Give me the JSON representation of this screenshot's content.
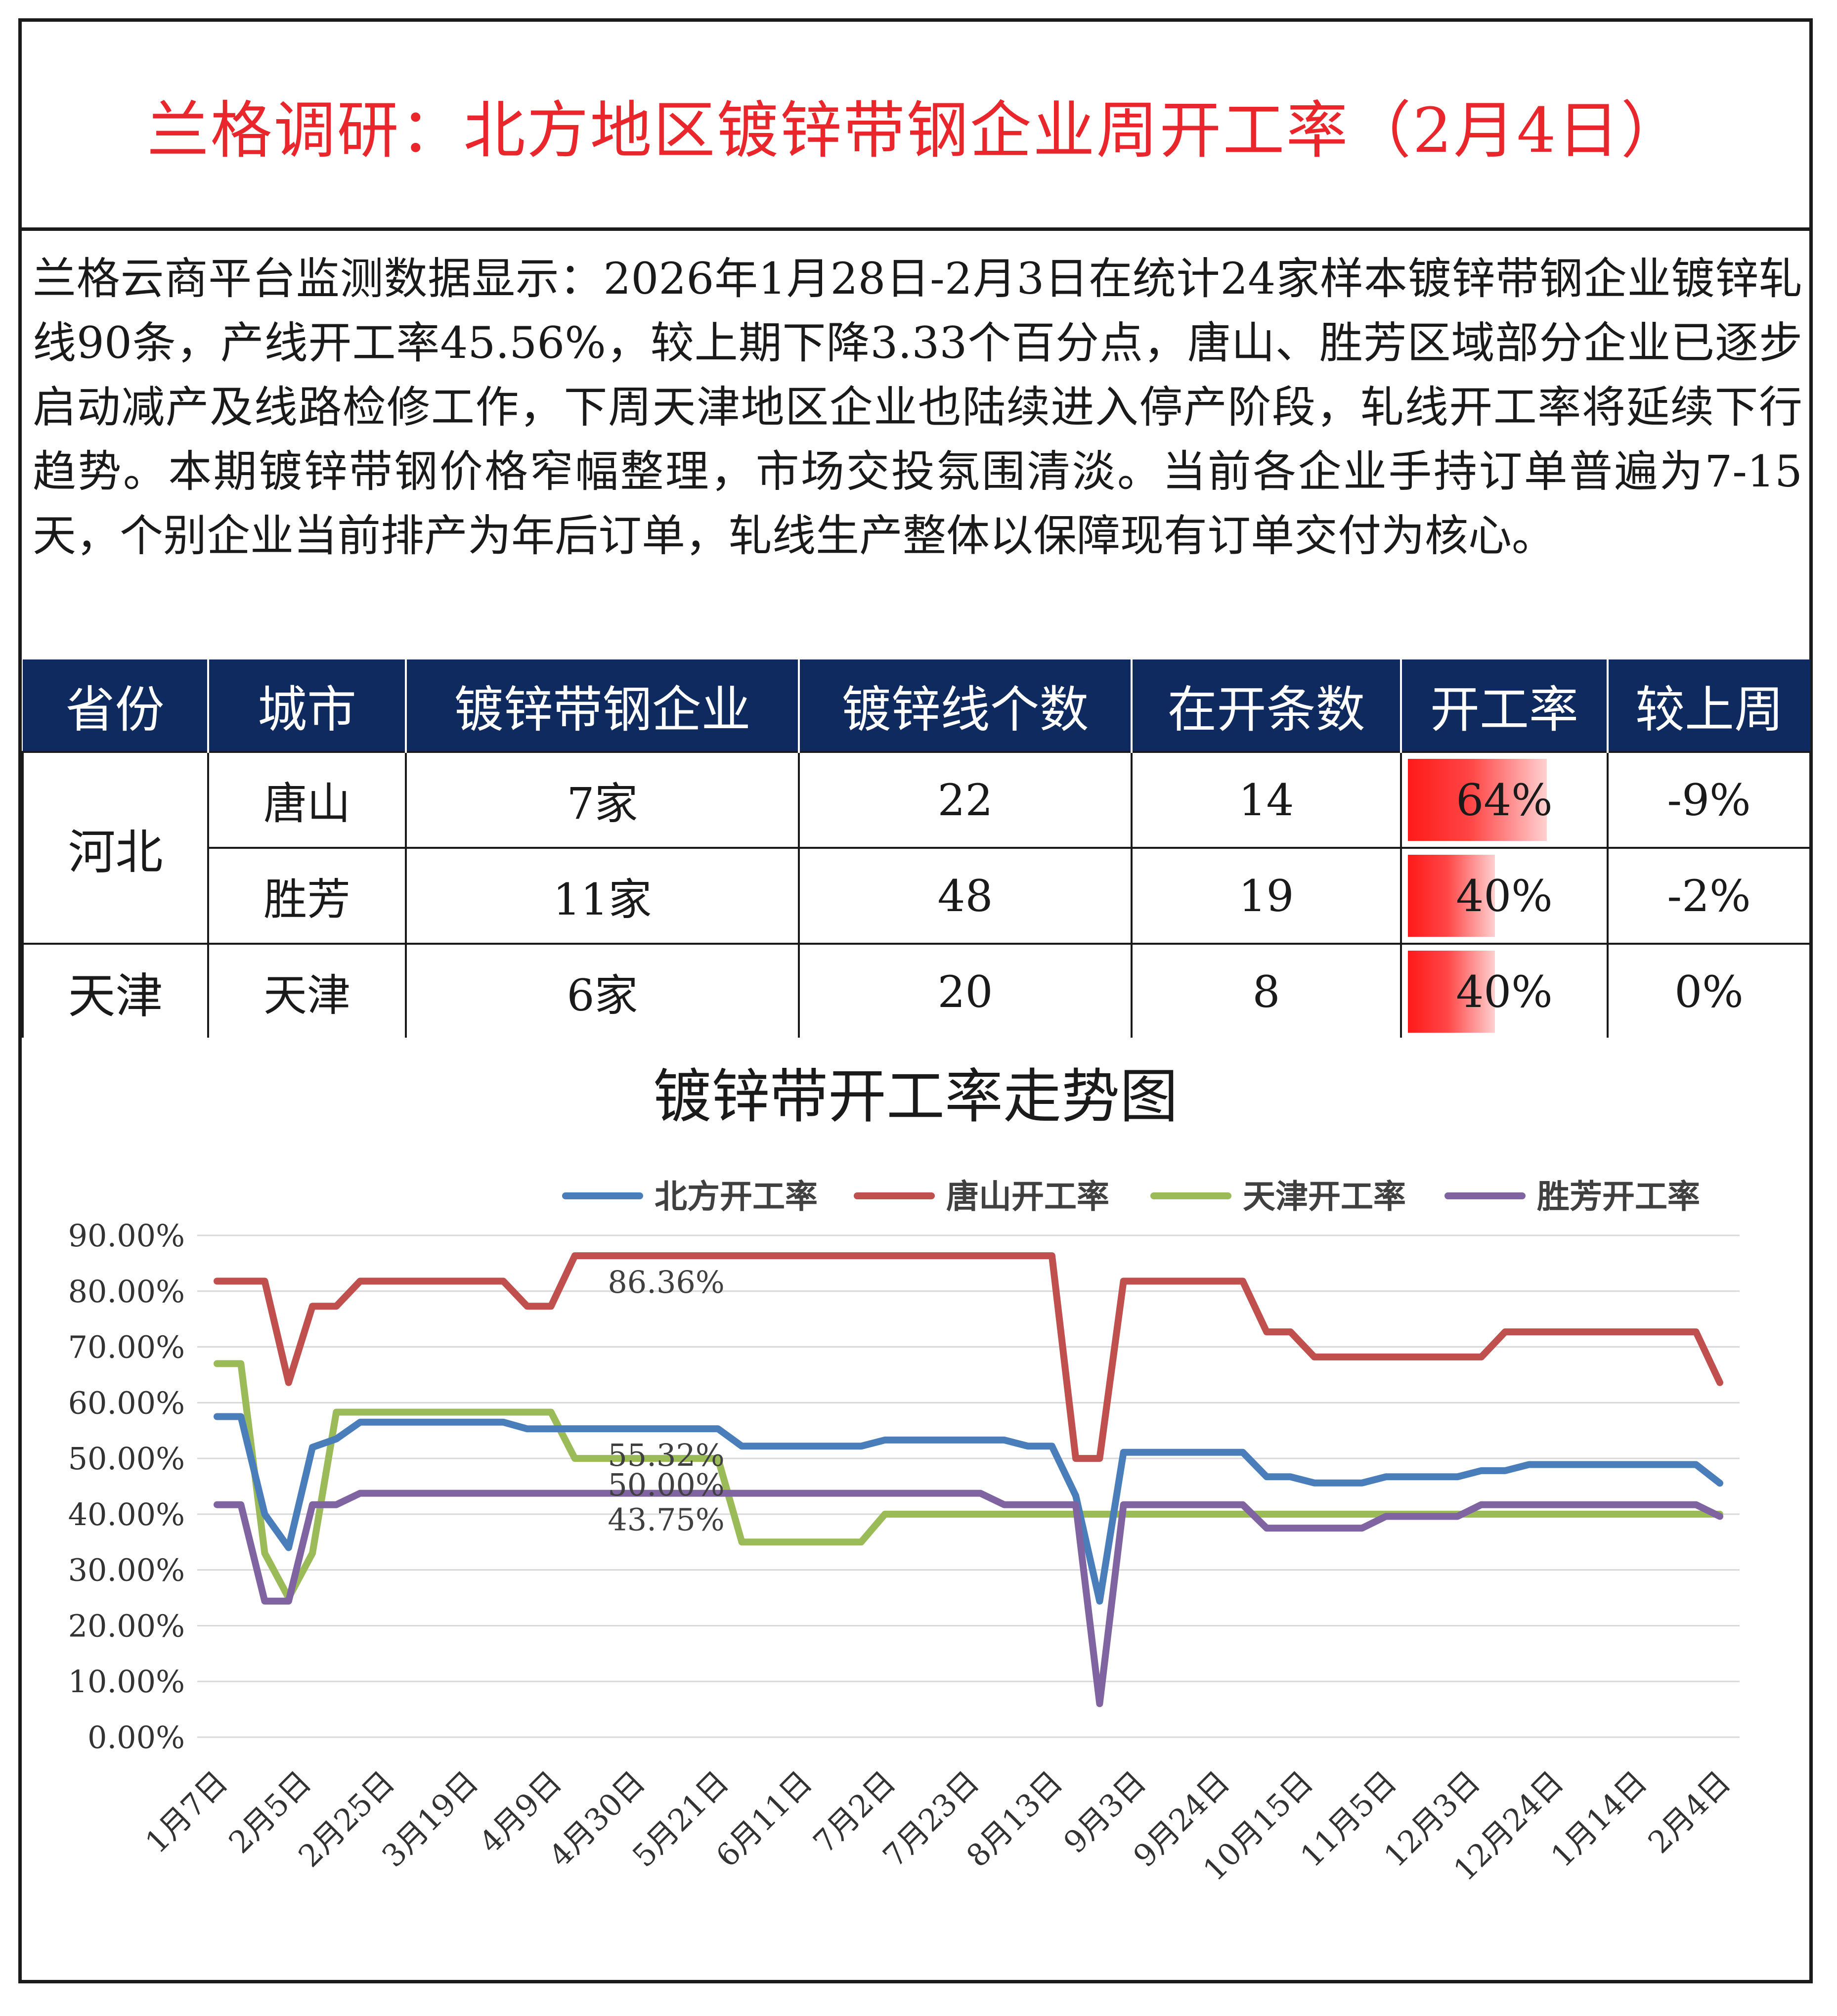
{
  "header": {
    "title": "兰格调研：北方地区镀锌带钢企业周开工率（2月4日）"
  },
  "description": "兰格云商平台监测数据显示：2026年1月28日-2月3日在统计24家样本镀锌带钢企业镀锌轧线90条，产线开工率45.56%，较上期下降3.33个百分点，唐山、胜芳区域部分企业已逐步启动减产及线路检修工作，下周天津地区企业也陆续进入停产阶段，轧线开工率将延续下行趋势。本期镀锌带钢价格窄幅整理，市场交投氛围清淡。当前各企业手持订单普遍为7-15天，个别企业当前排产为年后订单，轧线生产整体以保障现有订单交付为核心。",
  "table": {
    "headers": [
      "省份",
      "城市",
      "镀锌带钢企业",
      "镀锌线个数",
      "在开条数",
      "开工率",
      "较上周"
    ],
    "rows": [
      {
        "province": "河北",
        "city": "唐山",
        "enterprises": "7家",
        "lines": "22",
        "running": "14",
        "rate": "64%",
        "rate_value": 0.64,
        "change": "-9%"
      },
      {
        "province": "",
        "city": "胜芳",
        "enterprises": "11家",
        "lines": "48",
        "running": "19",
        "rate": "40%",
        "rate_value": 0.4,
        "change": "-2%"
      },
      {
        "province": "天津",
        "city": "天津",
        "enterprises": "6家",
        "lines": "20",
        "running": "8",
        "rate": "40%",
        "rate_value": 0.4,
        "change": "0%"
      }
    ],
    "header_bg": "#0f2a5e",
    "rate_bar_color": "#ff1a1a"
  },
  "chart_data": {
    "type": "line",
    "title": "镀锌带开工率走势图",
    "xlabel": "",
    "ylabel": "",
    "ylim": [
      0,
      90
    ],
    "y_ticks": [
      "90.00%",
      "80.00%",
      "70.00%",
      "60.00%",
      "50.00%",
      "40.00%",
      "30.00%",
      "20.00%",
      "10.00%",
      "0.00%"
    ],
    "x_tick_labels": [
      "1月7日",
      "2月5日",
      "2月25日",
      "3月19日",
      "4月9日",
      "4月30日",
      "5月21日",
      "6月11日",
      "7月2日",
      "7月23日",
      "8月13日",
      "9月3日",
      "9月24日",
      "10月15日",
      "11月5日",
      "12月3日",
      "12月24日",
      "1月14日",
      "2月4日"
    ],
    "legend_position": "top",
    "grid": true,
    "series": [
      {
        "name": "北方开工率",
        "color": "#4a7ebb",
        "values": [
          57.5,
          57.5,
          40,
          34,
          52,
          53.5,
          56.5,
          56.5,
          56.5,
          56.5,
          56.5,
          56.5,
          56.5,
          55.3,
          55.3,
          55.32,
          55.32,
          55.32,
          55.32,
          55.32,
          55.32,
          55.32,
          52.2,
          52.2,
          52.2,
          52.2,
          52.2,
          52.2,
          53.3,
          53.3,
          53.3,
          53.3,
          53.3,
          53.3,
          52.2,
          52.2,
          43.3,
          24.4,
          51.1,
          51.1,
          51.1,
          51.1,
          51.1,
          51.1,
          46.7,
          46.7,
          45.6,
          45.6,
          45.6,
          46.7,
          46.7,
          46.7,
          46.7,
          47.8,
          47.8,
          48.9,
          48.9,
          48.9,
          48.9,
          48.9,
          48.9,
          48.9,
          48.9,
          45.56
        ]
      },
      {
        "name": "唐山开工率",
        "color": "#c0504d",
        "values": [
          81.8,
          81.8,
          81.8,
          63.6,
          77.3,
          77.3,
          81.8,
          81.8,
          81.8,
          81.8,
          81.8,
          81.8,
          81.8,
          77.3,
          77.3,
          86.36,
          86.36,
          86.36,
          86.36,
          86.36,
          86.36,
          86.36,
          86.36,
          86.36,
          86.36,
          86.36,
          86.36,
          86.36,
          86.36,
          86.36,
          86.36,
          86.36,
          86.36,
          86.36,
          86.36,
          86.36,
          50,
          50,
          81.8,
          81.8,
          81.8,
          81.8,
          81.8,
          81.8,
          72.7,
          72.7,
          68.2,
          68.2,
          68.2,
          68.2,
          68.2,
          68.2,
          68.2,
          68.2,
          72.7,
          72.7,
          72.7,
          72.7,
          72.7,
          72.7,
          72.7,
          72.7,
          72.7,
          63.6
        ]
      },
      {
        "name": "天津开工率",
        "color": "#9bbb59",
        "values": [
          67,
          67,
          33,
          25,
          33,
          58.3,
          58.3,
          58.3,
          58.3,
          58.3,
          58.3,
          58.3,
          58.3,
          58.3,
          58.3,
          50,
          50,
          50,
          50,
          50,
          50,
          50,
          35,
          35,
          35,
          35,
          35,
          35,
          40,
          40,
          40,
          40,
          40,
          40,
          40,
          40,
          40,
          40,
          40,
          40,
          40,
          40,
          40,
          40,
          40,
          40,
          40,
          40,
          40,
          40,
          40,
          40,
          40,
          40,
          40,
          40,
          40,
          40,
          40,
          40,
          40,
          40,
          40,
          40
        ]
      },
      {
        "name": "胜芳开工率",
        "color": "#8064a2",
        "values": [
          41.7,
          41.7,
          24.4,
          24.4,
          41.7,
          41.7,
          43.75,
          43.75,
          43.75,
          43.75,
          43.75,
          43.75,
          43.75,
          43.75,
          43.75,
          43.75,
          43.75,
          43.75,
          43.75,
          43.75,
          43.75,
          43.75,
          43.75,
          43.75,
          43.75,
          43.75,
          43.75,
          43.75,
          43.75,
          43.75,
          43.75,
          43.75,
          43.75,
          41.7,
          41.7,
          41.7,
          41.7,
          6,
          41.7,
          41.7,
          41.7,
          41.7,
          41.7,
          41.7,
          37.5,
          37.5,
          37.5,
          37.5,
          37.5,
          39.6,
          39.6,
          39.6,
          39.6,
          41.7,
          41.7,
          41.7,
          41.7,
          41.7,
          41.7,
          41.7,
          41.7,
          41.7,
          41.7,
          39.6
        ]
      }
    ],
    "data_labels": [
      {
        "series": "唐山开工率",
        "index": 18,
        "text": "86.36%"
      },
      {
        "series": "北方开工率",
        "index": 18,
        "text": "55.32%"
      },
      {
        "series": "天津开工率",
        "index": 18,
        "text": "50.00%"
      },
      {
        "series": "胜芳开工率",
        "index": 18,
        "text": "43.75%"
      }
    ]
  }
}
